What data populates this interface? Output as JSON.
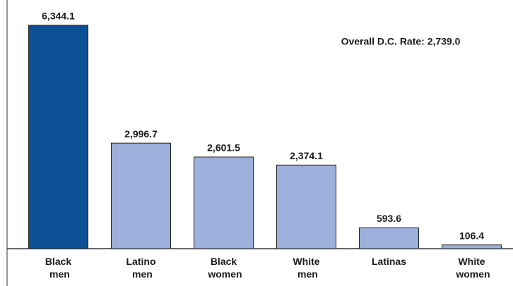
{
  "chart_data": {
    "type": "bar",
    "annotation": "Overall D.C. Rate: 2,739.0",
    "categories": [
      "Black men",
      "Latino men",
      "Black women",
      "White men",
      "Latinas",
      "White women"
    ],
    "values": [
      6344.1,
      2996.7,
      2601.5,
      2374.1,
      593.6,
      106.4
    ],
    "value_labels": [
      "6,344.1",
      "2,996.7",
      "2,601.5",
      "2,374.1",
      "593.6",
      "106.4"
    ],
    "colors": [
      "#0b4f94",
      "#9db0dc",
      "#9db0dc",
      "#9db0dc",
      "#9db0dc",
      "#9db0dc"
    ],
    "ylim": [
      0,
      7000
    ]
  }
}
